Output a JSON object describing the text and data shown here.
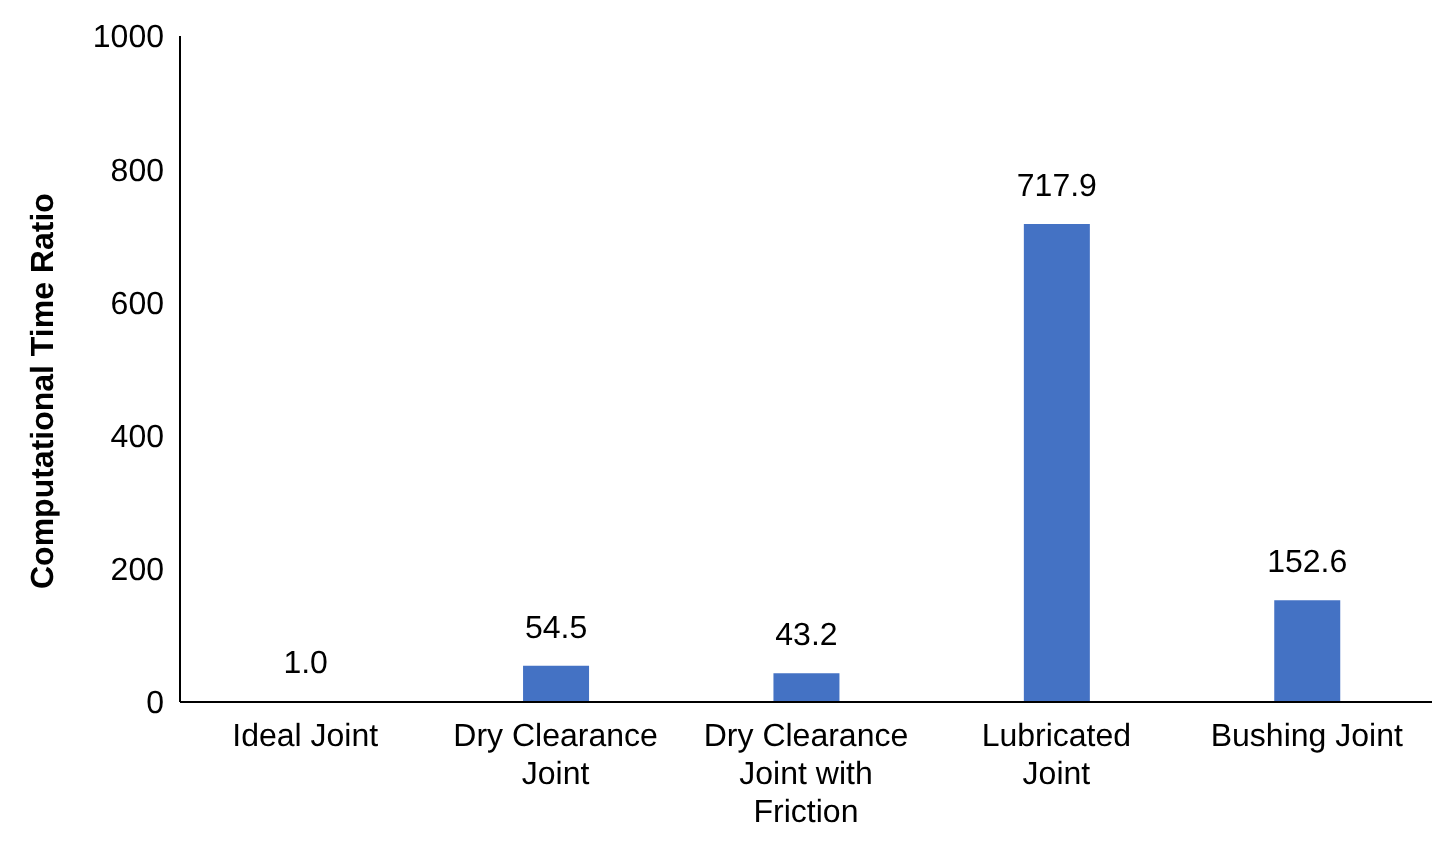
{
  "chart_data": {
    "type": "bar",
    "ylabel": "Computational Time Ratio",
    "categories": [
      "Ideal Joint",
      "Dry Clearance Joint",
      "Dry Clearance Joint with Friction",
      "Lubricated Joint",
      "Bushing Joint"
    ],
    "values": [
      1.0,
      54.5,
      43.2,
      717.9,
      152.6
    ],
    "value_labels": [
      "1.0",
      "54.5",
      "43.2",
      "717.9",
      "152.6"
    ],
    "color": "#4472c4",
    "ylim": [
      0,
      1000
    ],
    "yticks": [
      0,
      200,
      400,
      600,
      800,
      1000
    ],
    "grid": false,
    "legend": false
  }
}
